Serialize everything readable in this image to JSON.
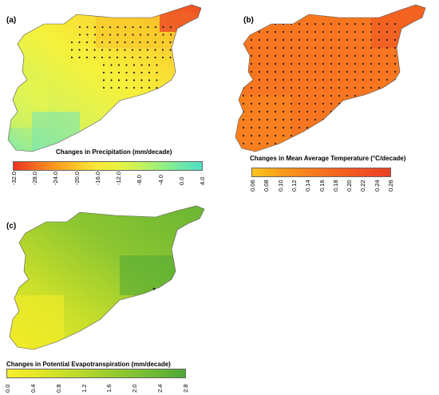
{
  "panels": {
    "a": {
      "label": "(a)",
      "legend_title": "Changes in Precipitation (mm/decade)",
      "ticks": [
        "-32.0",
        "-28.0",
        "-24.0",
        "-20.0",
        "-16.0",
        "-12.0",
        "-8.0",
        "-4.0",
        "0.0",
        "4.0"
      ],
      "colors": [
        "#ee3322",
        "#f46a1f",
        "#f99a20",
        "#fcc62a",
        "#f7e838",
        "#e8f440",
        "#c9f35a",
        "#9af07c",
        "#6fe8a6",
        "#4fdfc6"
      ]
    },
    "b": {
      "label": "(b)",
      "legend_title": "Changes in Mean Average Temperature (°C/decade)",
      "ticks": [
        "0.06",
        "0.08",
        "0.10",
        "0.12",
        "0.14",
        "0.16",
        "0.18",
        "0.20",
        "0.22",
        "0.24",
        "0.26"
      ],
      "colors": [
        "#fdc51d",
        "#fcb01c",
        "#fb9a1c",
        "#f98a1d",
        "#f77a1f",
        "#f56c20",
        "#f35f21",
        "#f15422",
        "#ef4a23",
        "#ec4023"
      ]
    },
    "c": {
      "label": "(c)",
      "legend_title": "Changes in Potential Evapotranspiration (mm/decade)",
      "ticks": [
        "0.0",
        "0.4",
        "0.8",
        "1.2",
        "1.6",
        "2.0",
        "2.4",
        "2.8"
      ],
      "colors": [
        "#f8ee2a",
        "#e6e728",
        "#cfe02a",
        "#b6d72c",
        "#9ccc2f",
        "#82c232",
        "#68b634",
        "#4fa836"
      ]
    }
  }
}
